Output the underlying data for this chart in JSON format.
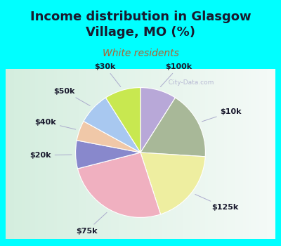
{
  "title": "Income distribution in Glasgow\nVillage, MO (%)",
  "subtitle": "White residents",
  "bg_cyan": "#00ffff",
  "bg_chart_color1": "#d0edd8",
  "bg_chart_color2": "#f0f8f0",
  "labels": [
    "$100k",
    "$10k",
    "$125k",
    "$75k",
    "$20k",
    "$40k",
    "$50k",
    "$30k"
  ],
  "values": [
    9,
    17,
    19,
    26,
    7,
    5,
    8,
    9
  ],
  "colors": [
    "#b8a8d8",
    "#a8b898",
    "#eeeea0",
    "#f0b0c0",
    "#8888cc",
    "#f0c8a8",
    "#a8c8f0",
    "#c8e850"
  ],
  "startangle": 90,
  "title_fontsize": 13,
  "subtitle_fontsize": 10,
  "label_fontsize": 8,
  "watermark": "  City-Data.com"
}
